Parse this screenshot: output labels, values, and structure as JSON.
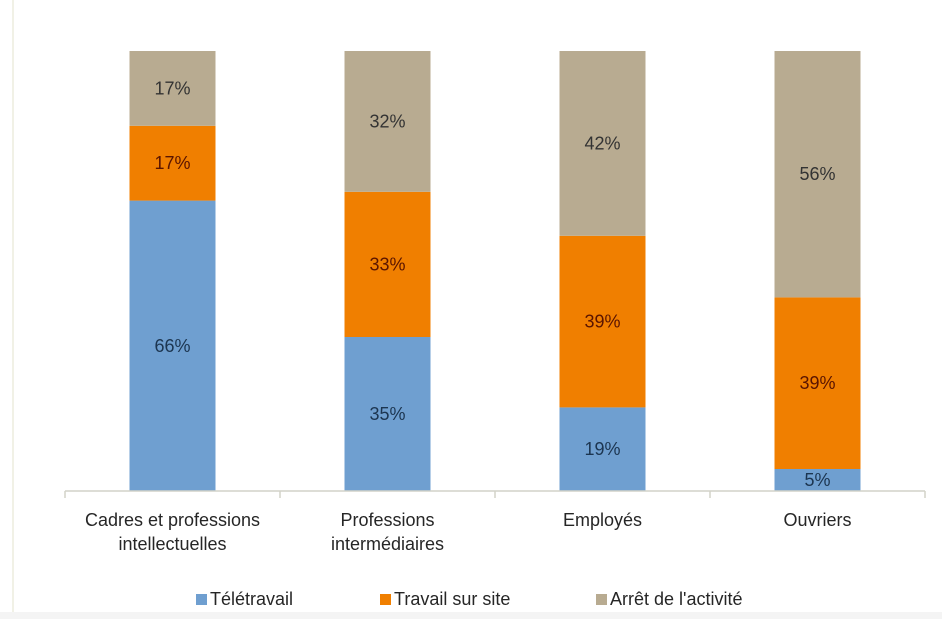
{
  "chart_data": {
    "type": "bar",
    "stacked": true,
    "categories": [
      [
        "Cadres et professions",
        "intellectuelles"
      ],
      [
        "Professions",
        "intermédiaires"
      ],
      [
        "Employés"
      ],
      [
        "Ouvriers"
      ]
    ],
    "series": [
      {
        "name": "Télétravail",
        "color": "#6f9fd0",
        "values": [
          66,
          35,
          19,
          5
        ],
        "labels": [
          "66%",
          "35%",
          "19%",
          "5%"
        ]
      },
      {
        "name": "Travail sur site",
        "color": "#f07f00",
        "values": [
          17,
          33,
          39,
          39
        ],
        "labels": [
          "17%",
          "33%",
          "39%",
          "39%"
        ]
      },
      {
        "name": "Arrêt de l'activité",
        "color": "#b8ab91",
        "values": [
          17,
          32,
          42,
          56
        ],
        "labels": [
          "17%",
          "32%",
          "42%",
          "56%"
        ]
      }
    ],
    "ylim": [
      0,
      100
    ],
    "grid": false,
    "legend_position": "bottom"
  }
}
